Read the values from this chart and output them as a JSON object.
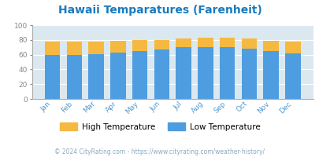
{
  "title": "Hawaii Temparatures (Farenheit)",
  "title_color": "#1a7abf",
  "months": [
    "Jan",
    "Feb",
    "Mar",
    "Apr",
    "May",
    "Jun",
    "Jul",
    "Aug",
    "Sep",
    "Oct",
    "Nov",
    "Dec"
  ],
  "low_temps": [
    60,
    60,
    61,
    63,
    65,
    67,
    70,
    70,
    70,
    68,
    65,
    62
  ],
  "high_temps": [
    78,
    78,
    78,
    79,
    80,
    80,
    82,
    83,
    83,
    82,
    79,
    78
  ],
  "low_color": "#4d9de0",
  "high_color": "#f5b942",
  "bg_color": "#dce8f0",
  "ylim": [
    0,
    100
  ],
  "yticks": [
    0,
    20,
    40,
    60,
    80,
    100
  ],
  "legend_labels": [
    "High Temperature",
    "Low Temperature"
  ],
  "footer": "© 2024 CityRating.com - https://www.cityrating.com/weather-history/",
  "footer_color": "#8aaabf",
  "axis_label_color": "#5599cc",
  "tick_color": "#888888"
}
